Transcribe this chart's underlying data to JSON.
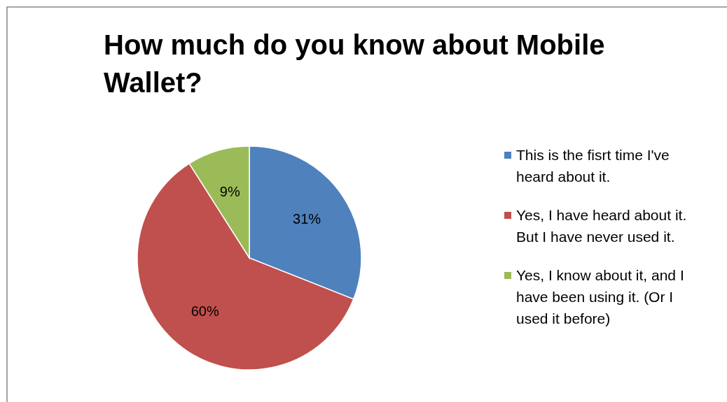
{
  "chart_data": {
    "type": "pie",
    "title": "How much do you know about Mobile Wallet?",
    "categories": [
      "This is the fisrt time I've heard about it.",
      "Yes, I have heard about it. But I have never used it.",
      "Yes, I know about it, and I have been using it. (Or I used it before)"
    ],
    "values": [
      31,
      60,
      9
    ],
    "colors": [
      "#4f81bd",
      "#c0504d",
      "#9bbb59"
    ],
    "value_labels": [
      "31%",
      "60%",
      "9%"
    ],
    "legend": "right"
  }
}
